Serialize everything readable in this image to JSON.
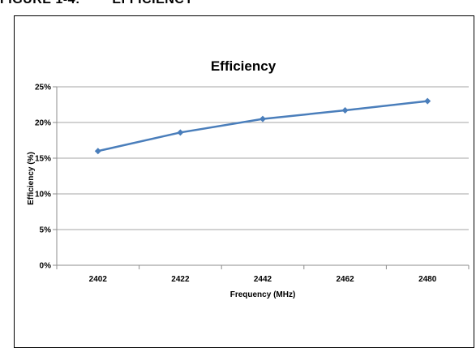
{
  "figure": {
    "caption": "FIGURE 1-4:        EFFICIENCY"
  },
  "chart_data": {
    "type": "line",
    "title": "Efficiency",
    "xlabel": "Frequency (MHz)",
    "ylabel": "Efficiency (%)",
    "categories": [
      "2402",
      "2422",
      "2442",
      "2462",
      "2480"
    ],
    "series": [
      {
        "values": [
          16.0,
          18.6,
          20.5,
          21.7,
          23.0
        ],
        "color": "#4a7ebb"
      }
    ],
    "ylim": [
      0,
      25
    ],
    "yticks": [
      "0%",
      "5%",
      "10%",
      "15%",
      "20%",
      "25%"
    ],
    "grid": true,
    "legend": "none"
  }
}
